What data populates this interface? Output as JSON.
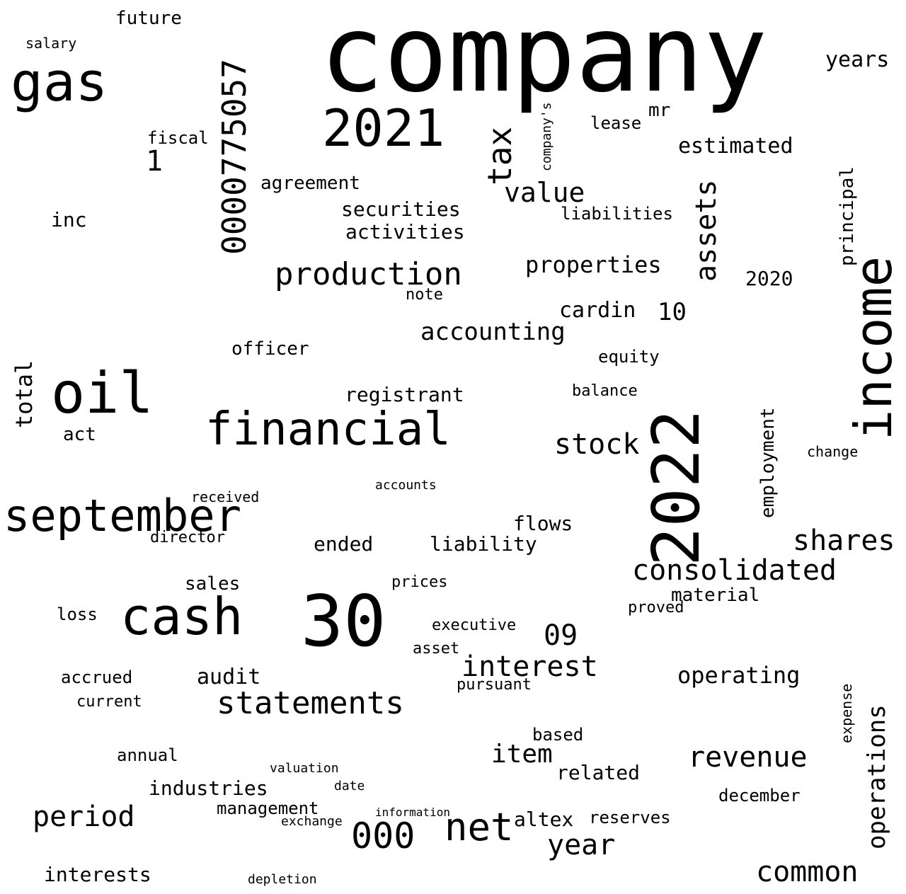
{
  "words": [
    "company",
    "2022",
    "30",
    "income",
    "cash",
    "oil",
    "financial",
    "september",
    "gas",
    "2021",
    "0000775057",
    "statements",
    "net",
    "production",
    "000",
    "tax",
    "consolidated",
    "revenue",
    "interest",
    "period",
    "value",
    "stock",
    "shares",
    "assets",
    "year",
    "operations",
    "common",
    "accounting",
    "09",
    "total",
    "item",
    "securities",
    "activities",
    "properties",
    "registrant",
    "estimated",
    "cardin",
    "audit",
    "operating",
    "interests",
    "industries",
    "related",
    "altex",
    "flows",
    "liability",
    "ended",
    "material",
    "employment",
    "principal",
    "officer",
    "years",
    "future",
    "lease",
    "2020",
    "sales",
    "agreement",
    "management",
    "equity",
    "accrued",
    "loss",
    "reserves",
    "december",
    "liabilities",
    "mr",
    "fiscal",
    "note",
    "inc",
    "1",
    "act",
    "10",
    "director",
    "based",
    "annual",
    "balance",
    "executive",
    "proved",
    "current",
    "pursuant",
    "salary",
    "depletion",
    "accounts",
    "prices",
    "received",
    "date",
    "exchange",
    "valuation",
    "information",
    "asset",
    "expense",
    "change",
    "company's"
  ]
}
